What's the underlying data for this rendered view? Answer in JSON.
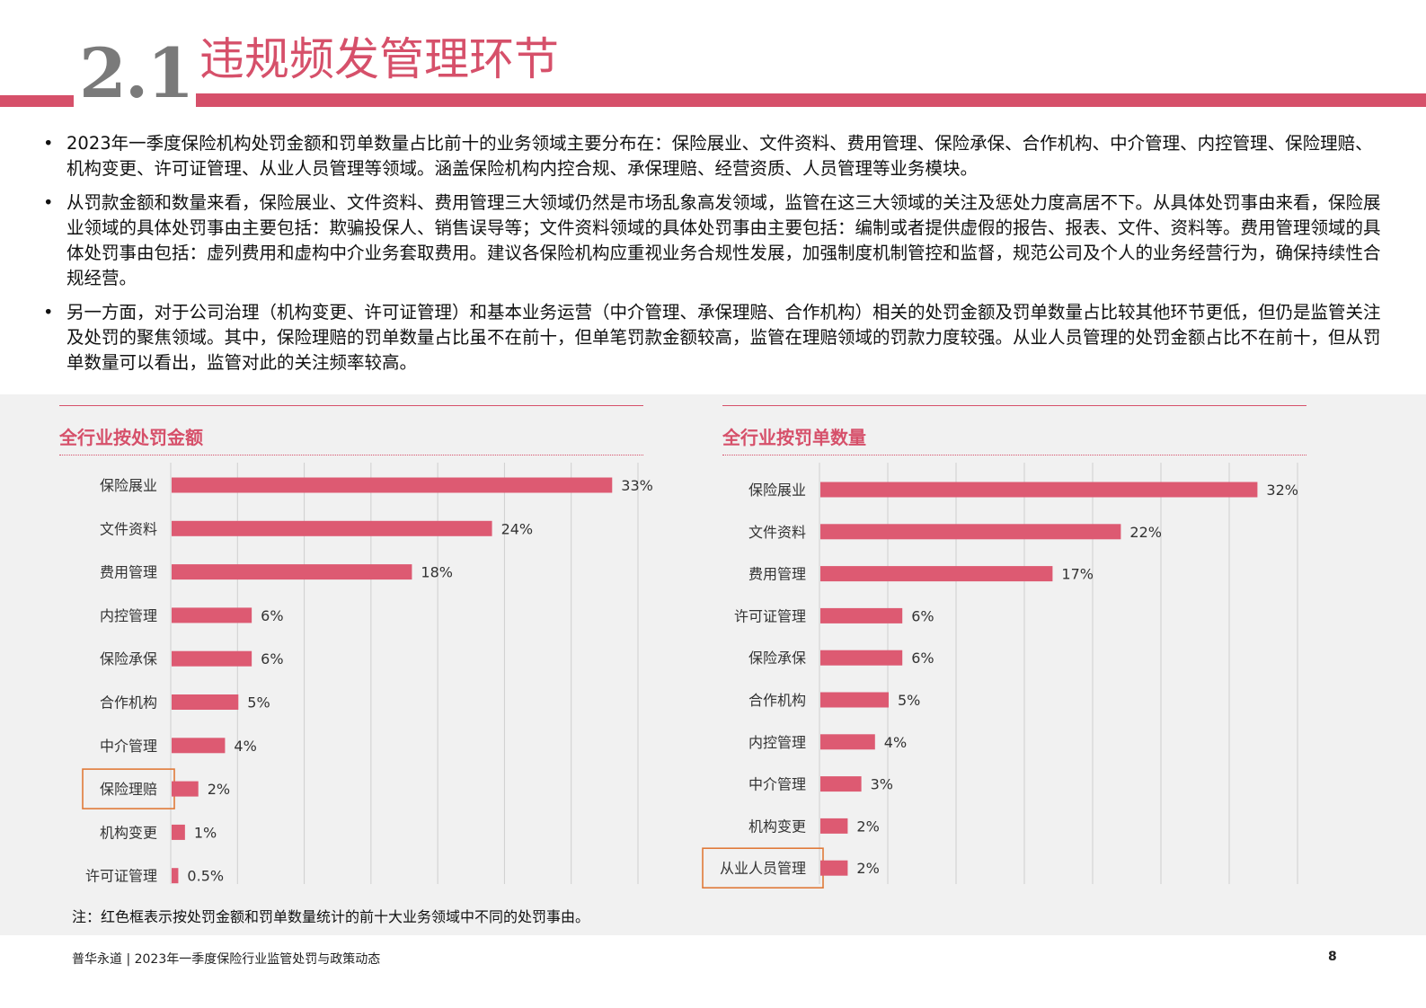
{
  "header": {
    "section_number": "2.1",
    "title": "违规频发管理环节"
  },
  "bullets": [
    "2023年一季度保险机构处罚金额和罚单数量占比前十的业务领域主要分布在：保险展业、文件资料、费用管理、保险承保、合作机构、中介管理、内控管理、保险理赔、机构变更、许可证管理、从业人员管理等领域。涵盖保险机构内控合规、承保理赔、经营资质、人员管理等业务模块。",
    "从罚款金额和数量来看，保险展业、文件资料、费用管理三大领域仍然是市场乱象高发领域，监管在这三大领域的关注及惩处力度高居不下。从具体处罚事由来看，保险展业领域的具体处罚事由主要包括：欺骗投保人、销售误导等；文件资料领域的具体处罚事由主要包括：编制或者提供虚假的报告、报表、文件、资料等。费用管理领域的具体处罚事由包括：虚列费用和虚构中介业务套取费用。建议各保险机构应重视业务合规性发展，加强制度机制管控和监督，规范公司及个人的业务经营行为，确保持续性合规经营。",
    "另一方面，对于公司治理（机构变更、许可证管理）和基本业务运营（中介管理、承保理赔、合作机构）相关的处罚金额及罚单数量占比较其他环节更低，但仍是监管关注及处罚的聚焦领域。其中，保险理赔的罚单数量占比虽不在前十，但单笔罚款金额较高，监管在理赔领域的罚款力度较强。从业人员管理的处罚金额占比不在前十，但从罚单数量可以看出，监管对此的关注频率较高。"
  ],
  "colors": {
    "accent": "#d6506a",
    "bar": "#dd5a72",
    "highlight_box": "#e07a3a",
    "panel_bg": "#f1f1f1",
    "grid": "#cfcfcf"
  },
  "chart_data": [
    {
      "type": "bar",
      "orientation": "horizontal",
      "title": "全行业按处罚金额",
      "categories": [
        "保险展业",
        "文件资料",
        "费用管理",
        "内控管理",
        "保险承保",
        "合作机构",
        "中介管理",
        "保险理赔",
        "机构变更",
        "许可证管理"
      ],
      "values": [
        33,
        24,
        18,
        6,
        6,
        5,
        4,
        2,
        1,
        0.5
      ],
      "value_labels": [
        "33%",
        "24%",
        "18%",
        "6%",
        "6%",
        "5%",
        "4%",
        "2%",
        "1%",
        "0.5%"
      ],
      "highlighted": [
        "保险理赔"
      ],
      "xlim": [
        0,
        35
      ],
      "grid": true
    },
    {
      "type": "bar",
      "orientation": "horizontal",
      "title": "全行业按罚单数量",
      "categories": [
        "保险展业",
        "文件资料",
        "费用管理",
        "许可证管理",
        "保险承保",
        "合作机构",
        "内控管理",
        "中介管理",
        "机构变更",
        "从业人员管理"
      ],
      "values": [
        32,
        22,
        17,
        6,
        6,
        5,
        4,
        3,
        2,
        2
      ],
      "value_labels": [
        "32%",
        "22%",
        "17%",
        "6%",
        "6%",
        "5%",
        "4%",
        "3%",
        "2%",
        "2%"
      ],
      "highlighted": [
        "从业人员管理"
      ],
      "xlim": [
        0,
        35
      ],
      "grid": true
    }
  ],
  "note": "注：红色框表示按处罚金额和罚单数量统计的前十大业务领域中不同的处罚事由。",
  "footer": {
    "text": "普华永道 | 2023年一季度保险行业监管处罚与政策动态",
    "page": "8"
  }
}
